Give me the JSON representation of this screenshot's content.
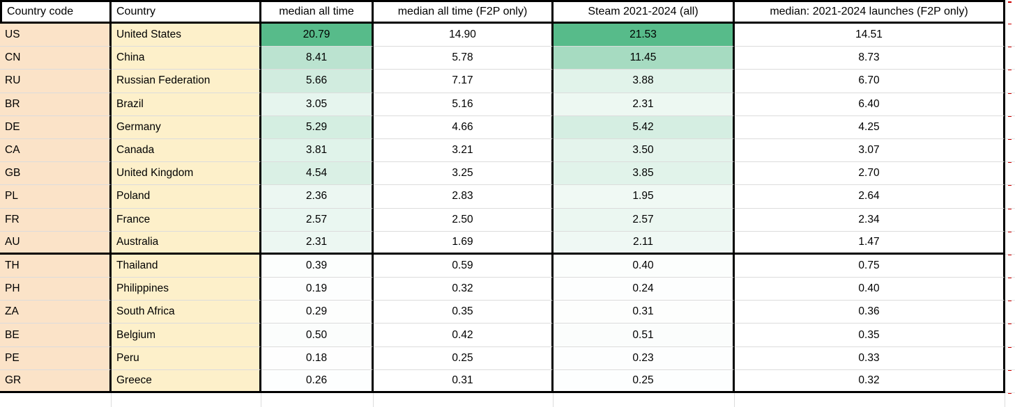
{
  "sheet": {
    "columns": [
      {
        "label": "Country code",
        "align": "left",
        "heatmap": false
      },
      {
        "label": "Country",
        "align": "left",
        "heatmap": false
      },
      {
        "label": "median all time",
        "align": "center",
        "heatmap": true
      },
      {
        "label": "median all time (F2P only)",
        "align": "center",
        "heatmap": false
      },
      {
        "label": "Steam 2021-2024 (all)",
        "align": "center",
        "heatmap": true
      },
      {
        "label": "median: 2021-2024 launches (F2P only)",
        "align": "center",
        "heatmap": false
      }
    ],
    "groups": [
      {
        "name": "top-countries",
        "rows": [
          {
            "code": "US",
            "country": "United States",
            "values": [
              "20.79",
              "14.90",
              "21.53",
              "14.51"
            ]
          },
          {
            "code": "CN",
            "country": "China",
            "values": [
              "8.41",
              "5.78",
              "11.45",
              "8.73"
            ]
          },
          {
            "code": "RU",
            "country": "Russian Federation",
            "values": [
              "5.66",
              "7.17",
              "3.88",
              "6.70"
            ]
          },
          {
            "code": "BR",
            "country": "Brazil",
            "values": [
              "3.05",
              "5.16",
              "2.31",
              "6.40"
            ]
          },
          {
            "code": "DE",
            "country": "Germany",
            "values": [
              "5.29",
              "4.66",
              "5.42",
              "4.25"
            ]
          },
          {
            "code": "CA",
            "country": "Canada",
            "values": [
              "3.81",
              "3.21",
              "3.50",
              "3.07"
            ]
          },
          {
            "code": "GB",
            "country": "United Kingdom",
            "values": [
              "4.54",
              "3.25",
              "3.85",
              "2.70"
            ]
          },
          {
            "code": "PL",
            "country": "Poland",
            "values": [
              "2.36",
              "2.83",
              "1.95",
              "2.64"
            ]
          },
          {
            "code": "FR",
            "country": "France",
            "values": [
              "2.57",
              "2.50",
              "2.57",
              "2.34"
            ]
          },
          {
            "code": "AU",
            "country": "Australia",
            "values": [
              "2.31",
              "1.69",
              "2.11",
              "1.47"
            ]
          }
        ]
      },
      {
        "name": "bottom-countries",
        "rows": [
          {
            "code": "TH",
            "country": "Thailand",
            "values": [
              "0.39",
              "0.59",
              "0.40",
              "0.75"
            ]
          },
          {
            "code": "PH",
            "country": "Philippines",
            "values": [
              "0.19",
              "0.32",
              "0.24",
              "0.40"
            ]
          },
          {
            "code": "ZA",
            "country": "South Africa",
            "values": [
              "0.29",
              "0.35",
              "0.31",
              "0.36"
            ]
          },
          {
            "code": "BE",
            "country": "Belgium",
            "values": [
              "0.50",
              "0.42",
              "0.51",
              "0.35"
            ]
          },
          {
            "code": "PE",
            "country": "Peru",
            "values": [
              "0.18",
              "0.25",
              "0.23",
              "0.33"
            ]
          },
          {
            "code": "GR",
            "country": "Greece",
            "values": [
              "0.26",
              "0.31",
              "0.25",
              "0.32"
            ]
          }
        ]
      }
    ],
    "colors": {
      "code_column_bg": "#fbe3c8",
      "country_column_bg": "#fdf0ca",
      "heat_max_color": "#57bb8a",
      "heat_min_color": "#ffffff",
      "gridline": "#dcdcdc",
      "thick_border": "#000000",
      "edge_mark_color": "#cc0000"
    }
  }
}
